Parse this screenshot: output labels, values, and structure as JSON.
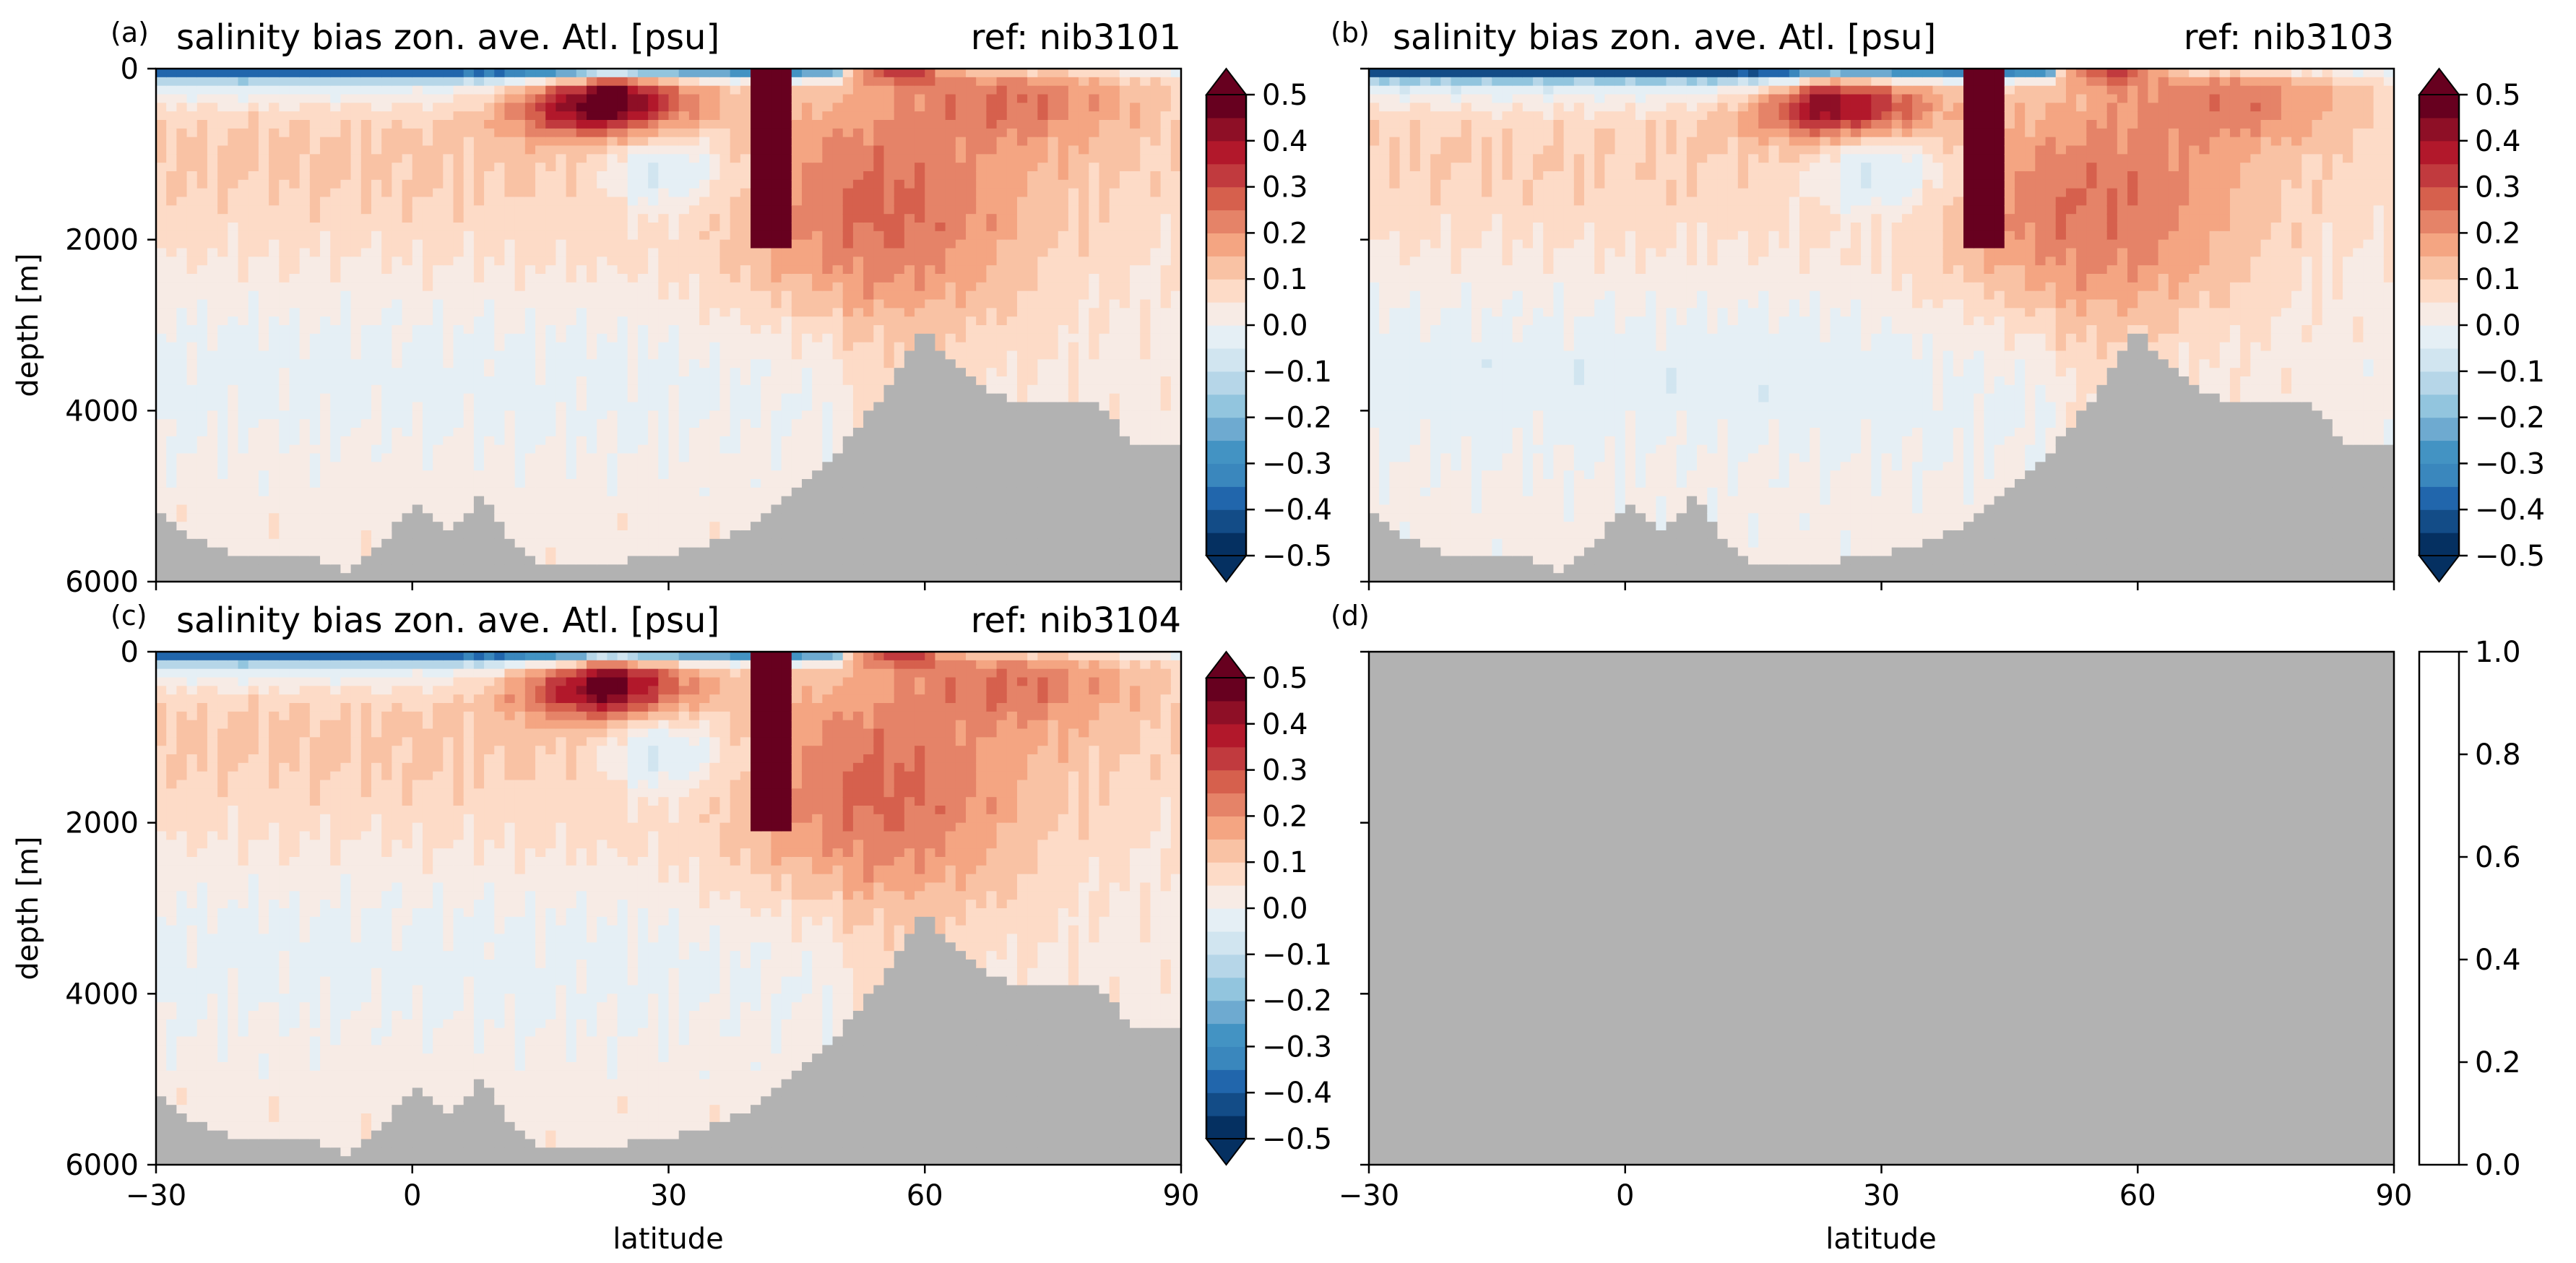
{
  "chart_data": [
    {
      "panel": "(a)",
      "type": "heatmap",
      "title": "salinity bias zon. ave. Atl. [psu]",
      "reference": "ref: nib3101",
      "xlabel": "",
      "ylabel": "depth [m]",
      "xlim": [
        -30,
        90
      ],
      "ylim": [
        6000,
        0
      ],
      "xticks": [
        "−30",
        "0",
        "30",
        "60",
        "90"
      ],
      "xticks_labeled": false,
      "yticks": [
        "0",
        "2000",
        "4000",
        "6000"
      ],
      "colormap": "RdBu_r",
      "colorbar": {
        "min": -0.5,
        "max": 0.5,
        "extend": "both",
        "ticks": [
          "0.5",
          "0.4",
          "0.3",
          "0.2",
          "0.1",
          "0.0",
          "−0.1",
          "−0.2",
          "−0.3",
          "−0.4",
          "−0.5"
        ]
      },
      "land_color": "#b2b2b2",
      "features": {
        "surface_fresh_bias": -0.4,
        "subsurface_salty_maximum": {
          "latitude": 22,
          "depth": 400,
          "value": 0.45
        },
        "mediterranean_outflow_column": {
          "latitude": 42,
          "depth_range": [
            0,
            2100
          ],
          "value": 0.5
        },
        "north_atlantic_salty_tongue": {
          "latitude_range": [
            30,
            75
          ],
          "depth_range": [
            500,
            3500
          ],
          "value": 0.2
        },
        "fresh_lens": {
          "latitude": 30,
          "depth": 1200,
          "value": -0.15
        },
        "deep_interior": 0.03
      },
      "bathymetry": {
        "latitude": [
          -30,
          -27,
          -20,
          -12,
          -8,
          -5,
          0,
          5,
          8,
          12,
          15,
          20,
          25,
          30,
          37,
          44,
          48,
          53,
          56,
          60,
          62,
          65,
          68,
          72,
          75,
          80,
          85,
          90
        ],
        "depth": [
          5100,
          5400,
          5700,
          5700,
          5900,
          5700,
          5100,
          5400,
          4950,
          5600,
          5800,
          5800,
          5750,
          5700,
          5500,
          5000,
          4700,
          4100,
          3700,
          3000,
          3300,
          3600,
          3800,
          3900,
          3900,
          3950,
          4400,
          4400
        ]
      }
    },
    {
      "panel": "(b)",
      "type": "heatmap",
      "title": "salinity bias zon. ave. Atl. [psu]",
      "reference": "ref: nib3103",
      "xlabel": "",
      "ylabel": "",
      "xlim": [
        -30,
        90
      ],
      "ylim": [
        6000,
        0
      ],
      "xticks": [
        "−30",
        "0",
        "30",
        "60",
        "90"
      ],
      "xticks_labeled": false,
      "colormap": "RdBu_r",
      "colorbar": {
        "min": -0.5,
        "max": 0.5,
        "extend": "both",
        "ticks": [
          "0.5",
          "0.4",
          "0.3",
          "0.2",
          "0.1",
          "0.0",
          "−0.1",
          "−0.2",
          "−0.3",
          "−0.4",
          "−0.5"
        ]
      },
      "land_color": "#b2b2b2",
      "features": {
        "surface_fresh_bias": -0.45,
        "subsurface_salty_maximum": {
          "latitude": 25,
          "depth": 450,
          "value": 0.35
        },
        "mediterranean_outflow_column": {
          "latitude": 42,
          "depth_range": [
            0,
            2100
          ],
          "value": 0.5
        },
        "north_atlantic_salty_tongue": {
          "latitude_range": [
            30,
            75
          ],
          "depth_range": [
            500,
            3500
          ],
          "value": 0.2
        },
        "fresh_lens": {
          "latitude": 30,
          "depth": 1200,
          "value": -0.15
        },
        "deep_interior": 0.02
      },
      "bathymetry": {
        "latitude": [
          -30,
          -27,
          -20,
          -12,
          -8,
          -5,
          0,
          5,
          8,
          12,
          15,
          20,
          25,
          30,
          37,
          44,
          48,
          53,
          56,
          60,
          62,
          65,
          68,
          72,
          75,
          80,
          85,
          90
        ],
        "depth": [
          5100,
          5400,
          5700,
          5700,
          5900,
          5700,
          5100,
          5400,
          4950,
          5600,
          5800,
          5800,
          5750,
          5700,
          5500,
          5000,
          4700,
          4100,
          3700,
          3000,
          3300,
          3600,
          3800,
          3900,
          3900,
          3950,
          4400,
          4400
        ]
      }
    },
    {
      "panel": "(c)",
      "type": "heatmap",
      "title": "salinity bias zon. ave. Atl. [psu]",
      "reference": "ref: nib3104",
      "xlabel": "latitude",
      "ylabel": "depth [m]",
      "xlim": [
        -30,
        90
      ],
      "ylim": [
        6000,
        0
      ],
      "xticks": [
        "−30",
        "0",
        "30",
        "60",
        "90"
      ],
      "xticks_labeled": true,
      "yticks": [
        "0",
        "2000",
        "4000",
        "6000"
      ],
      "colormap": "RdBu_r",
      "colorbar": {
        "min": -0.5,
        "max": 0.5,
        "extend": "both",
        "ticks": [
          "0.5",
          "0.4",
          "0.3",
          "0.2",
          "0.1",
          "0.0",
          "−0.1",
          "−0.2",
          "−0.3",
          "−0.4",
          "−0.5"
        ]
      },
      "land_color": "#b2b2b2",
      "features": {
        "surface_fresh_bias": -0.4,
        "subsurface_salty_maximum": {
          "latitude": 22,
          "depth": 400,
          "value": 0.4
        },
        "mediterranean_outflow_column": {
          "latitude": 42,
          "depth_range": [
            0,
            2100
          ],
          "value": 0.5
        },
        "north_atlantic_salty_tongue": {
          "latitude_range": [
            30,
            75
          ],
          "depth_range": [
            500,
            3500
          ],
          "value": 0.2
        },
        "fresh_lens": {
          "latitude": 30,
          "depth": 1200,
          "value": -0.15
        },
        "deep_interior": 0.03
      },
      "bathymetry": {
        "latitude": [
          -30,
          -27,
          -20,
          -12,
          -8,
          -5,
          0,
          5,
          8,
          12,
          15,
          20,
          25,
          30,
          37,
          44,
          48,
          53,
          56,
          60,
          62,
          65,
          68,
          72,
          75,
          80,
          85,
          90
        ],
        "depth": [
          5100,
          5400,
          5700,
          5700,
          5900,
          5700,
          5100,
          5400,
          4950,
          5600,
          5800,
          5800,
          5750,
          5700,
          5500,
          5000,
          4700,
          4100,
          3700,
          3000,
          3300,
          3600,
          3800,
          3900,
          3900,
          3950,
          4400,
          4400
        ]
      }
    },
    {
      "panel": "(d)",
      "type": "heatmap",
      "title": "",
      "xlabel": "latitude",
      "ylabel": "",
      "xlim": [
        -30,
        90
      ],
      "xticks": [
        "−30",
        "0",
        "30",
        "60",
        "90"
      ],
      "xticks_labeled": true,
      "empty": true,
      "fill_color": "#b2b2b2",
      "colorbar": {
        "min": 0.0,
        "max": 1.0,
        "extend": "neither",
        "ticks": [
          "1.0",
          "0.8",
          "0.6",
          "0.4",
          "0.2",
          "0.0"
        ]
      }
    }
  ]
}
